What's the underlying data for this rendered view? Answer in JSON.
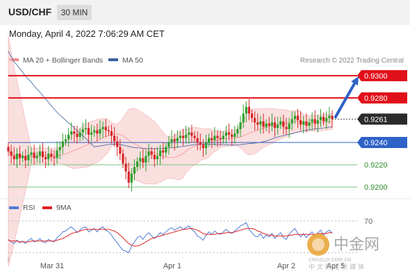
{
  "header": {
    "symbol": "USD/CHF",
    "timeframe": "30 MIN"
  },
  "datetime": "Monday, April 4, 2022 7:06:29 AM CET",
  "watermark": {
    "cn": "中金网",
    "domain": "CNGOLD.COM.CN",
    "tagline": "中 文 财 经 新 媒 体"
  },
  "colors": {
    "up": "#2ca02c",
    "down": "#d62728",
    "bollinger": "#f7c9c9",
    "ma50": "#3a5f9e",
    "res": "#e0101a",
    "sup": "#2f62c8",
    "green_line": "#7ec27e",
    "rsi": "#4f7bd6",
    "rsi_ma": "#e02020"
  },
  "chart_data": [
    {
      "type": "candlestick",
      "legend": [
        {
          "label": "MA 20 + Bollinger Bands",
          "color": "#f08a8a"
        },
        {
          "label": "MA 50",
          "color": "#3a5f9e"
        }
      ],
      "credit": "Research © 2022 Trading Central",
      "ylim": [
        0.9192,
        0.9308
      ],
      "current_price": "0.9261",
      "levels": [
        {
          "price": 0.93,
          "label": "0.9300",
          "kind": "resistance"
        },
        {
          "price": 0.928,
          "label": "0.9280",
          "kind": "resistance"
        },
        {
          "price": 0.924,
          "label": "0.9240",
          "kind": "pivot"
        },
        {
          "price": 0.922,
          "label": "0.9220",
          "kind": "support"
        },
        {
          "price": 0.92,
          "label": "0.9200",
          "kind": "support"
        }
      ],
      "forecast": {
        "from": 0.9262,
        "to": 0.93
      },
      "x_ticks": [
        "Mar 31",
        "Apr 1",
        "Apr 2",
        "Apr 5"
      ],
      "closes": [
        0.9232,
        0.9228,
        0.9225,
        0.923,
        0.9226,
        0.9228,
        0.9224,
        0.9229,
        0.9231,
        0.9226,
        0.9228,
        0.9232,
        0.9227,
        0.9225,
        0.923,
        0.9227,
        0.9226,
        0.9233,
        0.9236,
        0.9241,
        0.9243,
        0.9247,
        0.925,
        0.9248,
        0.9245,
        0.9249,
        0.9252,
        0.9253,
        0.9247,
        0.9249,
        0.9251,
        0.9248,
        0.9252,
        0.9254,
        0.9251,
        0.925,
        0.9246,
        0.9241,
        0.9236,
        0.923,
        0.9221,
        0.9214,
        0.9204,
        0.9212,
        0.9218,
        0.9223,
        0.9226,
        0.9222,
        0.9228,
        0.9232,
        0.9229,
        0.9225,
        0.9228,
        0.9233,
        0.9231,
        0.9236,
        0.924,
        0.9243,
        0.9241,
        0.9244,
        0.9246,
        0.9244,
        0.9247,
        0.9249,
        0.9246,
        0.9244,
        0.924,
        0.9238,
        0.9235,
        0.924,
        0.9244,
        0.9242,
        0.9246,
        0.9244,
        0.9243,
        0.9246,
        0.9249,
        0.9247,
        0.9245,
        0.9248,
        0.9252,
        0.9258,
        0.9266,
        0.9272,
        0.9266,
        0.9262,
        0.9258,
        0.9256,
        0.9259,
        0.9254,
        0.9257,
        0.9255,
        0.9258,
        0.9253,
        0.9256,
        0.9259,
        0.9254,
        0.9252,
        0.9257,
        0.9261,
        0.9264,
        0.926,
        0.9256,
        0.9259,
        0.9255,
        0.9258,
        0.9261,
        0.9257,
        0.926,
        0.9263,
        0.9259,
        0.9262,
        0.9264,
        0.9261
      ]
    },
    {
      "type": "line",
      "legend": [
        {
          "label": "RSI",
          "color": "#4f7bd6"
        },
        {
          "label": "9MA",
          "color": "#e02020"
        }
      ],
      "ylim": [
        30,
        75
      ],
      "y_ticks": [
        "70"
      ],
      "series": [
        {
          "name": "RSI",
          "values": [
            48,
            45,
            43,
            47,
            44,
            46,
            43,
            47,
            49,
            45,
            46,
            49,
            45,
            44,
            48,
            46,
            45,
            50,
            53,
            57,
            58,
            61,
            63,
            60,
            56,
            59,
            62,
            63,
            57,
            59,
            61,
            57,
            61,
            63,
            59,
            57,
            53,
            48,
            44,
            39,
            35,
            34,
            32,
            40,
            45,
            50,
            52,
            48,
            53,
            56,
            52,
            49,
            52,
            56,
            54,
            57,
            60,
            62,
            59,
            61,
            63,
            60,
            62,
            64,
            60,
            57,
            52,
            50,
            47,
            53,
            57,
            54,
            58,
            55,
            54,
            57,
            60,
            57,
            55,
            58,
            61,
            64,
            66,
            68,
            60,
            56,
            52,
            51,
            55,
            49,
            53,
            51,
            55,
            49,
            53,
            56,
            50,
            48,
            54,
            58,
            61,
            55,
            51,
            55,
            50,
            54,
            57,
            52,
            56,
            59,
            53,
            57,
            59,
            55
          ]
        },
        {
          "name": "9MA",
          "values": [
            47,
            46,
            46,
            46,
            45,
            45,
            45,
            45,
            46,
            46,
            46,
            46,
            46,
            46,
            46,
            46,
            46,
            47,
            48,
            49,
            51,
            53,
            55,
            56,
            57,
            58,
            59,
            60,
            60,
            60,
            60,
            60,
            60,
            60,
            60,
            60,
            59,
            58,
            56,
            53,
            50,
            46,
            43,
            41,
            40,
            40,
            41,
            43,
            45,
            47,
            49,
            50,
            51,
            52,
            53,
            54,
            55,
            56,
            57,
            58,
            59,
            60,
            60,
            61,
            61,
            60,
            59,
            57,
            55,
            54,
            54,
            54,
            54,
            55,
            55,
            55,
            56,
            56,
            56,
            57,
            58,
            59,
            60,
            61,
            61,
            61,
            60,
            58,
            57,
            55,
            54,
            53,
            53,
            52,
            52,
            52,
            52,
            52,
            53,
            53,
            54,
            54,
            54,
            54,
            54,
            54,
            54,
            54,
            55,
            55,
            55,
            55,
            56,
            56
          ]
        }
      ]
    }
  ]
}
